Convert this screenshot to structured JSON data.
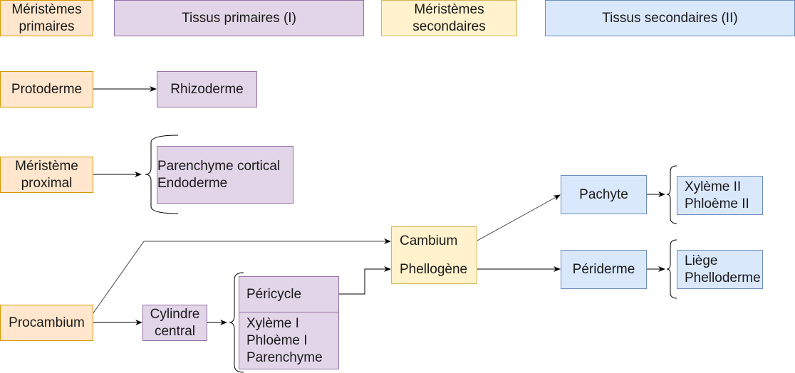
{
  "headers": {
    "meristemes_primaires": [
      "Méristèmes",
      "primaires"
    ],
    "tissus_primaires": "Tissus primaires (I)",
    "meristemes_secondaires": [
      "Méristèmes",
      "secondaires"
    ],
    "tissus_secondaires": "Tissus secondaires (II)"
  },
  "nodes": {
    "protoderme": "Protoderme",
    "rhizoderme": "Rhizoderme",
    "meristeme_proximal": [
      "Méristème",
      "proximal"
    ],
    "parenchyme_endoderme": [
      "Parenchyme cortical",
      "Endoderme"
    ],
    "procambium": "Procambium",
    "cylindre_central": [
      "Cylindre",
      "central"
    ],
    "pericycle": "Péricycle",
    "xyleme_phloeme_parenchyme": [
      "Xylème I",
      "Phloème I",
      "Parenchyme"
    ],
    "cambium": "Cambium",
    "phellogene": "Phellogène",
    "pachyte": "Pachyte",
    "periderme": "Périderme",
    "xyleme_phloeme_ii": [
      "Xylème II",
      "Phloème II"
    ],
    "liege_phelloderme": [
      "Liège",
      "Phelloderme"
    ]
  },
  "colors": {
    "orange_fill": "#ffe6cc",
    "orange_stroke": "#d79b00",
    "purple_fill": "#e1d5e7",
    "purple_stroke": "#9673a6",
    "yellow_fill": "#fff2cc",
    "yellow_stroke": "#d6b656",
    "blue_fill": "#dae8fc",
    "blue_stroke": "#6c8ebf"
  }
}
